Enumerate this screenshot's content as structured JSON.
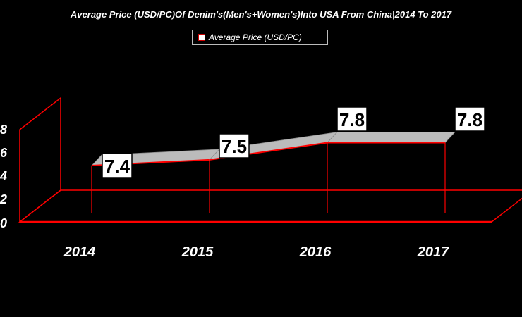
{
  "chart_data": {
    "type": "line",
    "title": "Average Price (USD/PC)Of Denim's(Men's+Women's)Into USA From China|2014 To 2017",
    "categories": [
      "2014",
      "2015",
      "2016",
      "2017"
    ],
    "series": [
      {
        "name": "Average Price (USD/PC)",
        "values": [
          7.4,
          7.5,
          7.8,
          7.8
        ]
      }
    ],
    "data_labels": [
      "7.4",
      "7.5",
      "7.8",
      "7.8"
    ],
    "y_tick_labels": [
      "0",
      "2",
      "4",
      "6",
      "8"
    ],
    "ylim": [
      6.6,
      8.2
    ],
    "legend": "top-center",
    "grid": false,
    "style": "3d-line",
    "colors": {
      "background": "#000000",
      "axis": "#ff0000",
      "ribbon_top": "#bbbbbb",
      "ribbon_edge": "#ff0000",
      "text": "#ffffff"
    }
  }
}
